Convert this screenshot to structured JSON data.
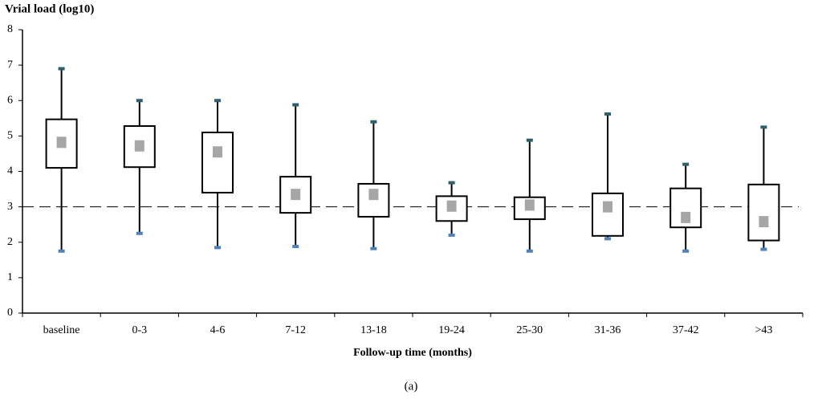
{
  "chart_data": {
    "type": "box",
    "title": "Vrial load (log10)",
    "x_label": "Follow-up time (months)",
    "caption": "(a)",
    "categories": [
      "baseline",
      "0-3",
      "4-6",
      "7-12",
      "13-18",
      "19-24",
      "25-30",
      "31-36",
      "37-42",
      ">43"
    ],
    "min": [
      1.75,
      2.25,
      1.85,
      1.88,
      1.82,
      2.2,
      1.75,
      2.1,
      1.75,
      1.8
    ],
    "q1": [
      4.1,
      4.12,
      3.4,
      2.83,
      2.72,
      2.6,
      2.65,
      2.18,
      2.42,
      2.05
    ],
    "q3": [
      5.47,
      5.28,
      5.1,
      3.85,
      3.65,
      3.3,
      3.27,
      3.38,
      3.52,
      3.63
    ],
    "max": [
      6.9,
      6.0,
      6.0,
      5.88,
      5.4,
      3.68,
      4.88,
      5.62,
      4.2,
      5.25
    ],
    "mean": [
      4.82,
      4.72,
      4.55,
      3.35,
      3.35,
      3.02,
      3.05,
      3.0,
      2.7,
      2.58
    ],
    "mean_color": "#a6a6a6",
    "top_cap_color": "#2e5f6e",
    "bottom_cap_color": "#4f81bd",
    "reference_line": 3,
    "ylim": [
      0,
      8
    ],
    "yticks": [
      0,
      1,
      2,
      3,
      4,
      5,
      6,
      7,
      8
    ]
  }
}
